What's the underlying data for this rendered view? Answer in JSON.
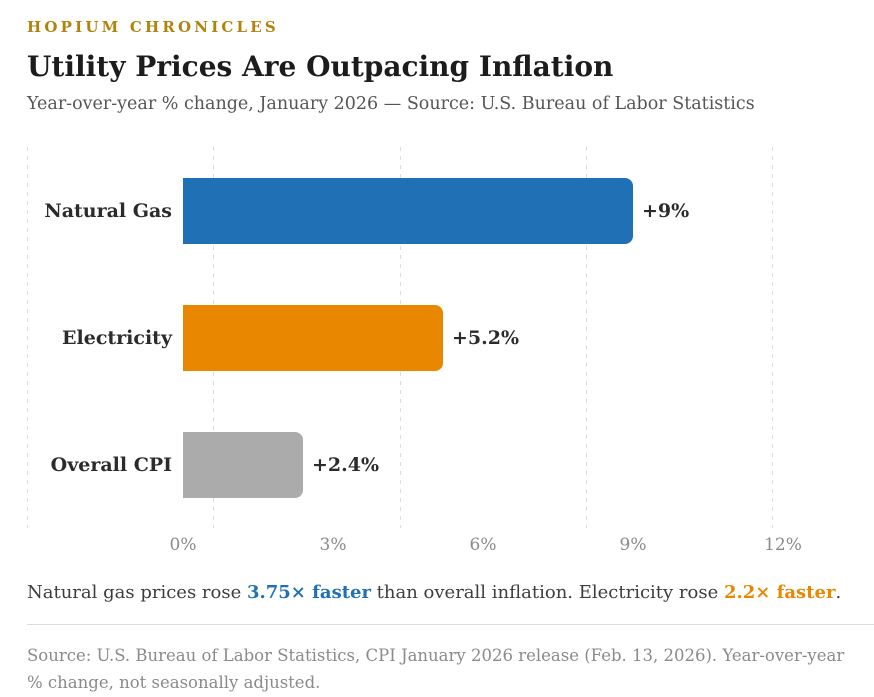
{
  "header": {
    "kicker": "HOPIUM CHRONICLES",
    "title": "Utility Prices Are Outpacing Inflation",
    "subtitle": "Year-over-year % change, January 2026 — Source: U.S. Bureau of Labor Statistics"
  },
  "chart_data": {
    "type": "bar",
    "orientation": "horizontal",
    "title": "Utility Prices Are Outpacing Inflation",
    "xlabel": "Year-over-year % change",
    "categories": [
      "Natural Gas",
      "Electricity",
      "Overall CPI"
    ],
    "values": [
      9,
      5.2,
      2.4
    ],
    "value_labels": [
      "+9%",
      "+5.2%",
      "+2.4%"
    ],
    "bar_colors": [
      "#1F70B4",
      "#E98700",
      "#ABABAB"
    ],
    "x_ticks": [
      {
        "value": 0,
        "label": "0%"
      },
      {
        "value": 3,
        "label": "3%"
      },
      {
        "value": 6,
        "label": "6%"
      },
      {
        "value": 9,
        "label": "9%"
      },
      {
        "value": 12,
        "label": "12%"
      }
    ],
    "xlim": [
      0,
      13.2
    ],
    "grid": "dashed-vertical",
    "legend": "none"
  },
  "summary": {
    "part1": "Natural gas prices rose ",
    "highlight1": "3.75× faster",
    "part2": " than overall inflation. Electricity rose ",
    "highlight2": "2.2× faster",
    "part3": ".",
    "highlight1_color": "#1F70B4",
    "highlight2_color": "#E98700"
  },
  "footer": {
    "source_note": "Source: U.S. Bureau of Labor Statistics, CPI January 2026 release (Feb. 13, 2026). Year-over-year % change, not seasonally adjusted."
  },
  "colors": {
    "background": "#FFFFFF",
    "kicker": "#B1830B",
    "title": "#1C1C1C",
    "subtitle": "#555555",
    "labels": "#2B2B2B",
    "ticks": "#8A8A8A",
    "gridline": "#DDDDDD",
    "summary_text": "#3D3D3D",
    "source": "#8A8A8A",
    "divider": "#DDDDDD"
  }
}
